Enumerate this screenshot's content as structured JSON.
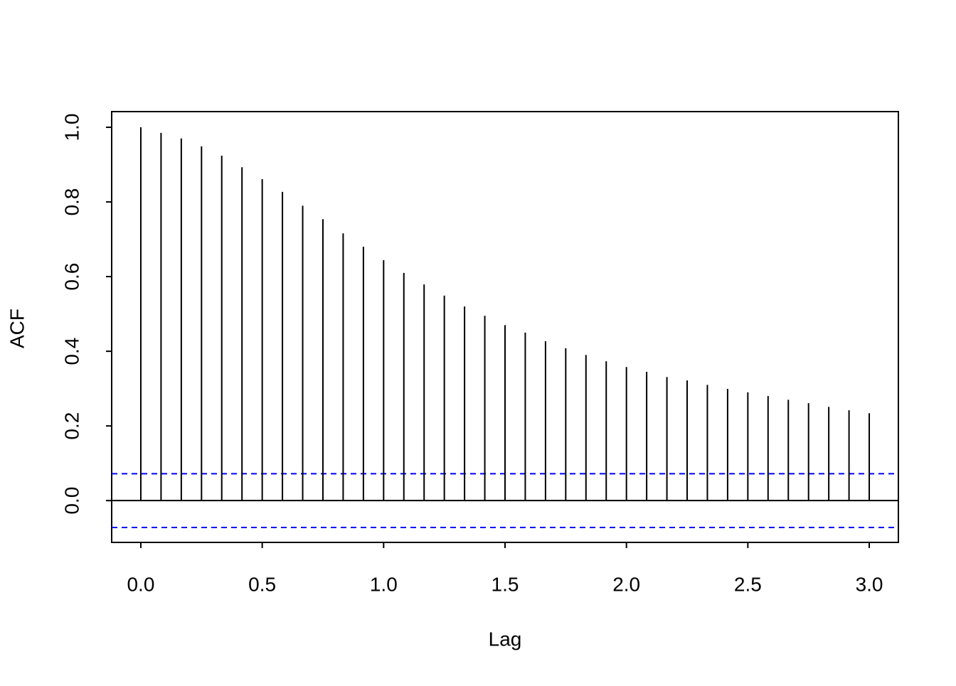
{
  "chart_data": {
    "type": "acf",
    "x_label": "Lag",
    "y_label": "ACF",
    "x": [
      0,
      0.0833,
      0.1667,
      0.25,
      0.3333,
      0.4167,
      0.5,
      0.5833,
      0.6667,
      0.75,
      0.8333,
      0.9167,
      1.0,
      1.0833,
      1.1667,
      1.25,
      1.3333,
      1.4167,
      1.5,
      1.5833,
      1.6667,
      1.75,
      1.8333,
      1.9167,
      2.0,
      2.0833,
      2.1667,
      2.25,
      2.3333,
      2.4167,
      2.5,
      2.5833,
      2.6667,
      2.75,
      2.8333,
      2.9167,
      3.0
    ],
    "values": [
      1.0,
      0.985,
      0.97,
      0.949,
      0.924,
      0.893,
      0.861,
      0.827,
      0.79,
      0.754,
      0.716,
      0.68,
      0.644,
      0.61,
      0.579,
      0.549,
      0.52,
      0.495,
      0.47,
      0.45,
      0.427,
      0.408,
      0.39,
      0.373,
      0.358,
      0.345,
      0.331,
      0.322,
      0.31,
      0.299,
      0.29,
      0.28,
      0.27,
      0.261,
      0.251,
      0.242,
      0.234
    ],
    "color": "#000000",
    "ci": [
      -0.072,
      0.072
    ],
    "ci_color": "#0000ff",
    "xlim": [
      -0.12,
      3.12
    ],
    "ylim": [
      -0.112,
      1.042
    ],
    "xticks": [
      {
        "value": 0,
        "label": "0.0"
      },
      0.5,
      {
        "value": 1,
        "label": "1.0"
      },
      1.5,
      {
        "value": 2,
        "label": "2.0"
      },
      2.5,
      {
        "value": 3,
        "label": "3.0"
      }
    ],
    "yticks": [
      {
        "value": 0,
        "label": "0.0"
      },
      0.2,
      0.4,
      0.6,
      0.8,
      {
        "value": 1,
        "label": "1.0"
      }
    ]
  }
}
